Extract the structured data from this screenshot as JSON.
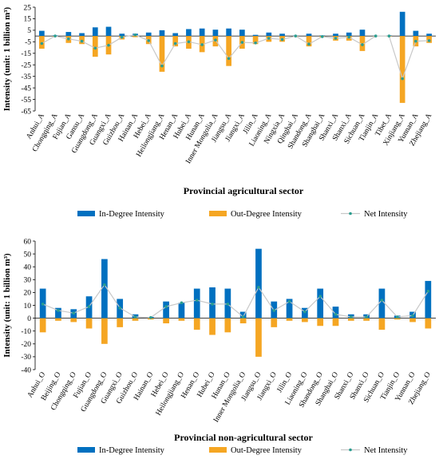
{
  "legend": {
    "in_label": "In-Degree Intensity",
    "out_label": "Out-Degree Intensity",
    "net_label": "Net Intensity"
  },
  "colors": {
    "in": "#0070c0",
    "out": "#f5a623",
    "net_line": "#c8c8c8",
    "net_marker": "#2a9d8f"
  },
  "chart_data": [
    {
      "type": "bar",
      "title": "",
      "ylabel": "Intensity (unit: 1 billion m³)",
      "xlabel": "Provincial agricultural sector",
      "ylim": [
        -65,
        25
      ],
      "yticks": [
        25,
        15,
        5,
        -5,
        -15,
        -25,
        -35,
        -45,
        -55,
        -65
      ],
      "categories": [
        "Anhui_A",
        "Chongqing_A",
        "Fujian_A",
        "Gansu_A",
        "Guangdong_A",
        "Guangxi_A",
        "Guizhou_A",
        "Hainan_A",
        "Hebei_A",
        "Heilongjiang_A",
        "Henan_A",
        "Hubei_A",
        "Hunan_A",
        "Inner Mongolia_A",
        "Jiangsu_A",
        "Jiangxi_A",
        "Jilin_A",
        "Liaoning_A",
        "Ningxia_A",
        "Qinghai_A",
        "Shandong_A",
        "Shanghai_A",
        "Shanxi_A",
        "Shanxi_A",
        "Sichuan_A",
        "Tianjin_A",
        "Tibet_A",
        "Xinjiang_A",
        "Yunnan_A",
        "Zhejiang_A"
      ],
      "series": [
        {
          "name": "In-Degree Intensity",
          "values": [
            4.5,
            0.5,
            3.5,
            2.5,
            7.5,
            8,
            2,
            2,
            3,
            5,
            2.5,
            6,
            6.5,
            5.5,
            6.5,
            5.5,
            1,
            3,
            2,
            0.3,
            2,
            0.5,
            2,
            3,
            5.5,
            0.3,
            0.5,
            21,
            4.5,
            2
          ]
        },
        {
          "name": "Out-Degree Intensity",
          "values": [
            -11,
            -0.5,
            -6,
            -7,
            -18,
            -16,
            -3,
            -1,
            -7,
            -31,
            -9,
            -11,
            -14,
            -9,
            -26,
            -11,
            -7,
            -5,
            -5,
            -0.3,
            -9,
            -1,
            -4,
            -4,
            -13,
            -0.3,
            -0.5,
            -58,
            -9,
            -6
          ]
        },
        {
          "name": "Net Intensity",
          "values": [
            -6.5,
            0,
            -2.5,
            -4.5,
            -10.5,
            -8,
            -1,
            1,
            -4,
            -26,
            -6.5,
            -5,
            -7.5,
            -3.5,
            -19.5,
            -5.5,
            -6,
            -2,
            -3,
            0,
            -7,
            -0.5,
            -2,
            -1,
            -7.5,
            0,
            0,
            -37,
            -4.5,
            -4
          ]
        }
      ]
    },
    {
      "type": "bar",
      "title": "",
      "ylabel": "Intensity (unit: 1 billion m³)",
      "xlabel": "Provincial non-agricultural sector",
      "ylim": [
        -40,
        60
      ],
      "yticks": [
        60,
        50,
        40,
        30,
        20,
        10,
        0,
        -10,
        -20,
        -30,
        -40
      ],
      "categories": [
        "Anhui_O",
        "Beijing_O",
        "Chongqing_O",
        "Fujian_O",
        "Guangdong_O",
        "Guangxi_O",
        "Guizhou_O",
        "Hainan_O",
        "Hebei_O",
        "Heilongjiang_O",
        "Henan_O",
        "Hubei_O",
        "Hunan_O",
        "Inner Mongolia_O",
        "Jiangsu_O",
        "Jiangxi_O",
        "Jilin_O",
        "Liaoning_O",
        "Shandong_O",
        "Shanghai_O",
        "Shanxi_O",
        "Shanxi_O",
        "Sichuan_O",
        "Tianjin_O",
        "Yunnan_O",
        "Zhejiang_O"
      ],
      "series": [
        {
          "name": "In-Degree Intensity",
          "values": [
            23,
            8,
            7,
            17,
            46,
            15,
            3,
            1,
            13,
            12,
            23,
            24,
            23,
            5,
            54,
            13,
            15,
            8,
            23,
            9,
            3,
            3,
            23,
            2,
            5,
            29
          ]
        },
        {
          "name": "Out-Degree Intensity",
          "values": [
            -11,
            -2,
            -3,
            -8,
            -20,
            -7,
            -2,
            -1,
            -4,
            -2,
            -9,
            -13,
            -11,
            -4,
            -30,
            -7,
            -2,
            -3,
            -6,
            -6,
            -2,
            -2,
            -9,
            -1,
            -3,
            -8
          ]
        },
        {
          "name": "Net Intensity",
          "values": [
            11,
            6,
            4,
            9,
            26,
            8,
            1,
            0.5,
            9,
            12,
            14,
            11,
            11,
            1,
            24,
            6,
            13,
            5,
            17,
            3,
            1,
            1,
            14,
            1,
            2,
            21
          ]
        }
      ]
    }
  ]
}
